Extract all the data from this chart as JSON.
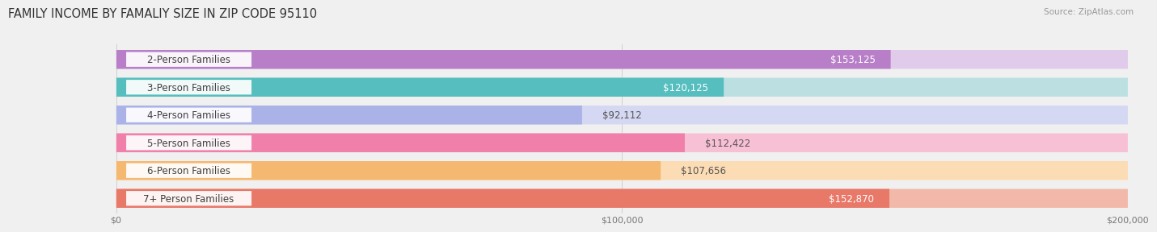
{
  "title": "FAMILY INCOME BY FAMALIY SIZE IN ZIP CODE 95110",
  "source": "Source: ZipAtlas.com",
  "categories": [
    "2-Person Families",
    "3-Person Families",
    "4-Person Families",
    "5-Person Families",
    "6-Person Families",
    "7+ Person Families"
  ],
  "values": [
    153125,
    120125,
    92112,
    112422,
    107656,
    152870
  ],
  "bar_colors": [
    "#b87fc8",
    "#56bebe",
    "#aab2e8",
    "#f080aa",
    "#f5b870",
    "#e87868"
  ],
  "bar_bg_colors": [
    "#e0ccea",
    "#bce0e2",
    "#d5d8f2",
    "#f8c0d4",
    "#fcdcb4",
    "#f2b8aa"
  ],
  "value_labels": [
    "$153,125",
    "$120,125",
    "$92,112",
    "$112,422",
    "$107,656",
    "$152,870"
  ],
  "value_inside": [
    true,
    true,
    false,
    false,
    false,
    true
  ],
  "xlim": [
    0,
    200000
  ],
  "xticks": [
    0,
    100000,
    200000
  ],
  "xtick_labels": [
    "$0",
    "$100,000",
    "$200,000"
  ],
  "title_fontsize": 10.5,
  "label_fontsize": 8.5,
  "value_fontsize": 8.5,
  "tick_fontsize": 8,
  "background_color": "#f0f0f0"
}
